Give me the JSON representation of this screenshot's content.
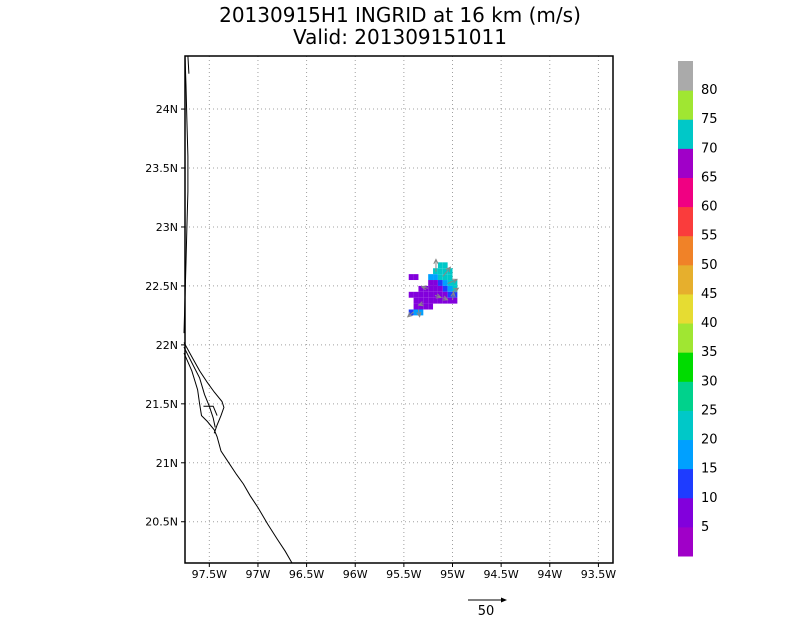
{
  "title_line1": "20130915H1 INGRID at 16 km (m/s)",
  "title_line2": "Valid: 201309151011",
  "chart_data": {
    "type": "heatmap",
    "title": "20130915H1 INGRID at 16 km (m/s)",
    "subtitle": "Valid: 201309151011",
    "xlim": [
      -97.75,
      -93.35
    ],
    "ylim": [
      20.15,
      24.45
    ],
    "x_ticks": [
      -97.5,
      -97.0,
      -96.5,
      -96.0,
      -95.5,
      -95.0,
      -94.5,
      -94.0,
      -93.5
    ],
    "x_tick_labels": [
      "97.5W",
      "97W",
      "96.5W",
      "96W",
      "95.5W",
      "95W",
      "94.5W",
      "94W",
      "93.5W"
    ],
    "y_ticks": [
      20.5,
      21.0,
      21.5,
      22.0,
      22.5,
      23.0,
      23.5,
      24.0
    ],
    "y_tick_labels": [
      "20.5N",
      "21N",
      "21.5N",
      "22N",
      "22.5N",
      "23N",
      "23.5N",
      "24N"
    ],
    "grid": true,
    "colorbar": {
      "colors": [
        "#a000c8",
        "#8200dc",
        "#1e3cff",
        "#00a0ff",
        "#00c8c8",
        "#00d28c",
        "#00dc00",
        "#a0e632",
        "#e6dc32",
        "#e6af2d",
        "#f08228",
        "#fa3c3c",
        "#f00082",
        "#a000c8",
        "#00c8c8",
        "#a0e632",
        "#aaaaaa"
      ],
      "labels": [
        "5",
        "10",
        "15",
        "20",
        "25",
        "30",
        "35",
        "40",
        "45",
        "50",
        "55",
        "60",
        "65",
        "70",
        "75",
        "80"
      ]
    },
    "reference_vector": {
      "value": 50,
      "label": "50"
    },
    "cell_size_deg": 0.05,
    "cells": [
      {
        "lon": -95.45,
        "lat": 22.55,
        "color": "#8200dc"
      },
      {
        "lon": -95.4,
        "lat": 22.55,
        "color": "#8200dc"
      },
      {
        "lon": -95.15,
        "lat": 22.65,
        "color": "#00c8c8"
      },
      {
        "lon": -95.1,
        "lat": 22.65,
        "color": "#00c8c8"
      },
      {
        "lon": -95.2,
        "lat": 22.6,
        "color": "#00c8c8"
      },
      {
        "lon": -95.15,
        "lat": 22.6,
        "color": "#00c8c8"
      },
      {
        "lon": -95.1,
        "lat": 22.6,
        "color": "#00c8c8"
      },
      {
        "lon": -95.05,
        "lat": 22.6,
        "color": "#00c8c8"
      },
      {
        "lon": -95.25,
        "lat": 22.55,
        "color": "#00a0ff"
      },
      {
        "lon": -95.2,
        "lat": 22.55,
        "color": "#00a0ff"
      },
      {
        "lon": -95.15,
        "lat": 22.55,
        "color": "#00c8c8"
      },
      {
        "lon": -95.1,
        "lat": 22.55,
        "color": "#00c8c8"
      },
      {
        "lon": -95.05,
        "lat": 22.55,
        "color": "#00c8c8"
      },
      {
        "lon": -95.25,
        "lat": 22.5,
        "color": "#8200dc"
      },
      {
        "lon": -95.2,
        "lat": 22.5,
        "color": "#8200dc"
      },
      {
        "lon": -95.15,
        "lat": 22.5,
        "color": "#1e3cff"
      },
      {
        "lon": -95.1,
        "lat": 22.5,
        "color": "#00a0ff"
      },
      {
        "lon": -95.05,
        "lat": 22.5,
        "color": "#00c8c8"
      },
      {
        "lon": -95.0,
        "lat": 22.5,
        "color": "#00c8c8"
      },
      {
        "lon": -95.35,
        "lat": 22.45,
        "color": "#8200dc"
      },
      {
        "lon": -95.3,
        "lat": 22.45,
        "color": "#8200dc"
      },
      {
        "lon": -95.25,
        "lat": 22.45,
        "color": "#8200dc"
      },
      {
        "lon": -95.2,
        "lat": 22.45,
        "color": "#8200dc"
      },
      {
        "lon": -95.15,
        "lat": 22.45,
        "color": "#8200dc"
      },
      {
        "lon": -95.1,
        "lat": 22.45,
        "color": "#1e3cff"
      },
      {
        "lon": -95.05,
        "lat": 22.45,
        "color": "#00a0ff"
      },
      {
        "lon": -95.0,
        "lat": 22.45,
        "color": "#00c8c8"
      },
      {
        "lon": -95.45,
        "lat": 22.4,
        "color": "#8200dc"
      },
      {
        "lon": -95.4,
        "lat": 22.4,
        "color": "#8200dc"
      },
      {
        "lon": -95.35,
        "lat": 22.4,
        "color": "#8200dc"
      },
      {
        "lon": -95.3,
        "lat": 22.4,
        "color": "#8200dc"
      },
      {
        "lon": -95.25,
        "lat": 22.4,
        "color": "#8200dc"
      },
      {
        "lon": -95.2,
        "lat": 22.4,
        "color": "#8200dc"
      },
      {
        "lon": -95.15,
        "lat": 22.4,
        "color": "#8200dc"
      },
      {
        "lon": -95.1,
        "lat": 22.4,
        "color": "#8200dc"
      },
      {
        "lon": -95.05,
        "lat": 22.4,
        "color": "#1e3cff"
      },
      {
        "lon": -95.0,
        "lat": 22.4,
        "color": "#1e3cff"
      },
      {
        "lon": -95.4,
        "lat": 22.35,
        "color": "#8200dc"
      },
      {
        "lon": -95.35,
        "lat": 22.35,
        "color": "#8200dc"
      },
      {
        "lon": -95.3,
        "lat": 22.35,
        "color": "#8200dc"
      },
      {
        "lon": -95.25,
        "lat": 22.35,
        "color": "#8200dc"
      },
      {
        "lon": -95.2,
        "lat": 22.35,
        "color": "#8200dc"
      },
      {
        "lon": -95.15,
        "lat": 22.35,
        "color": "#8200dc"
      },
      {
        "lon": -95.1,
        "lat": 22.35,
        "color": "#8200dc"
      },
      {
        "lon": -95.05,
        "lat": 22.35,
        "color": "#8200dc"
      },
      {
        "lon": -95.0,
        "lat": 22.35,
        "color": "#8200dc"
      },
      {
        "lon": -95.4,
        "lat": 22.3,
        "color": "#8200dc"
      },
      {
        "lon": -95.35,
        "lat": 22.3,
        "color": "#8200dc"
      },
      {
        "lon": -95.3,
        "lat": 22.3,
        "color": "#8200dc"
      },
      {
        "lon": -95.25,
        "lat": 22.3,
        "color": "#8200dc"
      },
      {
        "lon": -95.45,
        "lat": 22.25,
        "color": "#1e3cff"
      },
      {
        "lon": -95.4,
        "lat": 22.25,
        "color": "#00a0ff"
      },
      {
        "lon": -95.35,
        "lat": 22.25,
        "color": "#00a0ff"
      }
    ],
    "vectors": [
      {
        "lon": -95.17,
        "lat": 22.62,
        "u": 0.0,
        "v": 0.35
      },
      {
        "lon": -95.1,
        "lat": 22.58,
        "u": 0.26,
        "v": 0.26
      },
      {
        "lon": -95.05,
        "lat": 22.52,
        "u": 0.32,
        "v": 0.12
      },
      {
        "lon": -95.25,
        "lat": 22.48,
        "u": -0.22,
        "v": 0.04
      },
      {
        "lon": -95.18,
        "lat": 22.42,
        "u": 0.2,
        "v": -0.06
      },
      {
        "lon": -95.1,
        "lat": 22.4,
        "u": 0.16,
        "v": -0.06
      },
      {
        "lon": -95.0,
        "lat": 22.45,
        "u": 0.2,
        "v": 0.1
      },
      {
        "lon": -95.3,
        "lat": 22.35,
        "u": -0.16,
        "v": -0.04
      },
      {
        "lon": -95.35,
        "lat": 22.3,
        "u": 0.04,
        "v": -0.2
      },
      {
        "lon": -95.4,
        "lat": 22.28,
        "u": -0.2,
        "v": -0.14
      },
      {
        "lon": -95.0,
        "lat": 22.38,
        "u": 0.04,
        "v": 0.22
      }
    ],
    "coastlines": [
      [
        [
          -97.75,
          24.45
        ],
        [
          -97.74,
          24.2
        ],
        [
          -97.73,
          23.9
        ],
        [
          -97.72,
          23.6
        ],
        [
          -97.72,
          23.3
        ],
        [
          -97.73,
          23.0
        ],
        [
          -97.74,
          22.7
        ],
        [
          -97.75,
          22.4
        ],
        [
          -97.76,
          22.1
        ]
      ],
      [
        [
          -97.72,
          24.45
        ],
        [
          -97.71,
          24.3
        ]
      ],
      [
        [
          -97.76,
          22.02
        ],
        [
          -97.68,
          21.9
        ],
        [
          -97.6,
          21.78
        ],
        [
          -97.52,
          21.68
        ],
        [
          -97.45,
          21.6
        ],
        [
          -97.37,
          21.52
        ],
        [
          -97.35,
          21.47
        ],
        [
          -97.38,
          21.4
        ],
        [
          -97.42,
          21.32
        ],
        [
          -97.45,
          21.25
        ]
      ],
      [
        [
          -97.76,
          21.98
        ],
        [
          -97.68,
          21.85
        ],
        [
          -97.6,
          21.72
        ],
        [
          -97.55,
          21.58
        ],
        [
          -97.5,
          21.48
        ],
        [
          -97.46,
          21.38
        ],
        [
          -97.44,
          21.3
        ]
      ],
      [
        [
          -97.76,
          21.93
        ],
        [
          -97.68,
          21.78
        ],
        [
          -97.62,
          21.62
        ],
        [
          -97.6,
          21.5
        ],
        [
          -97.58,
          21.4
        ],
        [
          -97.52,
          21.35
        ],
        [
          -97.45,
          21.28
        ],
        [
          -97.42,
          21.22
        ],
        [
          -97.38,
          21.1
        ],
        [
          -97.3,
          21.0
        ],
        [
          -97.22,
          20.9
        ],
        [
          -97.15,
          20.82
        ],
        [
          -97.08,
          20.72
        ],
        [
          -97.0,
          20.62
        ],
        [
          -96.9,
          20.48
        ],
        [
          -96.8,
          20.35
        ],
        [
          -96.72,
          20.25
        ],
        [
          -96.65,
          20.15
        ]
      ],
      [
        [
          -97.56,
          21.48
        ],
        [
          -97.46,
          21.48
        ],
        [
          -97.42,
          21.4
        ]
      ]
    ]
  }
}
